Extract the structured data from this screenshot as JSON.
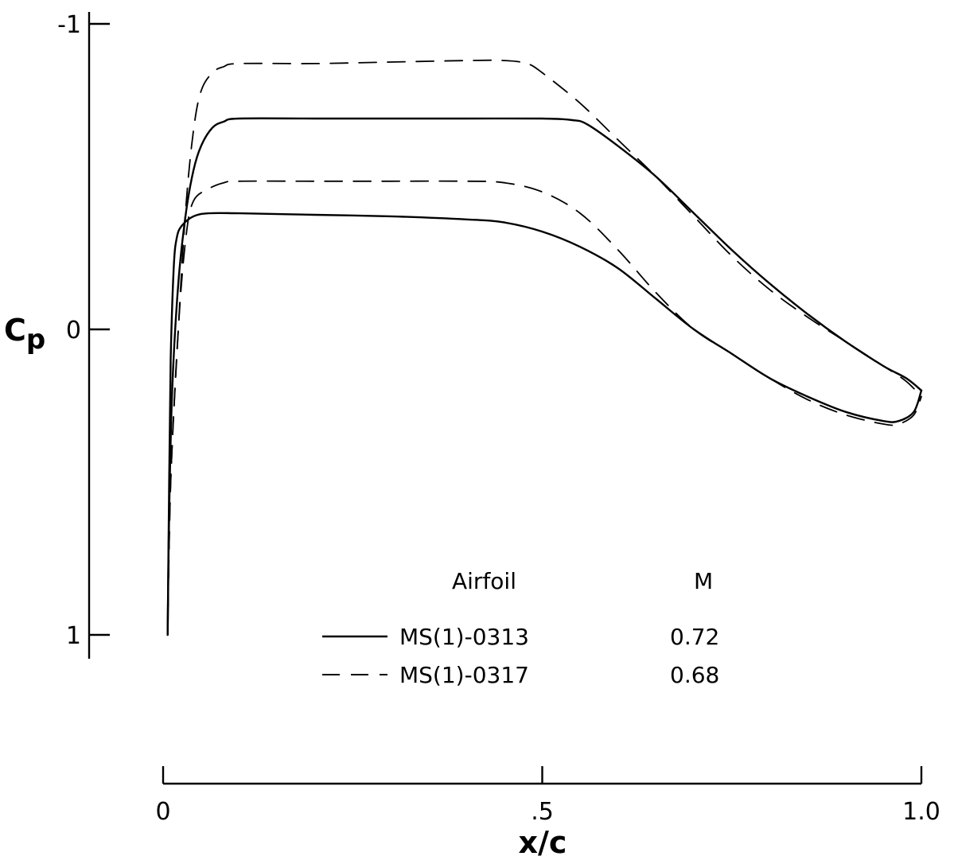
{
  "chart_data": {
    "type": "line",
    "xlabel": "x/c",
    "ylabel": "C",
    "ylabel_subscript": "p",
    "x_axis": {
      "range": [
        0,
        1.0
      ],
      "ticks": [
        0,
        0.5,
        1.0
      ],
      "tick_labels": [
        "0",
        ".5",
        "1.0"
      ]
    },
    "y_axis": {
      "range": [
        1,
        -1
      ],
      "inverted": true,
      "ticks": [
        -1,
        0,
        1
      ],
      "tick_labels": [
        "-1",
        "0",
        "1"
      ]
    },
    "grid": false,
    "legend": {
      "position": "bottom-center",
      "header_airfoil": "Airfoil",
      "header_mach": "M",
      "entries": [
        {
          "airfoil": "MS(1)-0313",
          "mach": "0.72",
          "style": "solid"
        },
        {
          "airfoil": "MS(1)-0317",
          "mach": "0.68",
          "style": "dashed"
        }
      ]
    },
    "series": [
      {
        "airfoil": "MS(1)-0313",
        "surface": "upper",
        "style": "solid",
        "points": [
          [
            0.006,
            1.0
          ],
          [
            0.008,
            0.6
          ],
          [
            0.012,
            0.2
          ],
          [
            0.02,
            -0.15
          ],
          [
            0.03,
            -0.38
          ],
          [
            0.04,
            -0.52
          ],
          [
            0.05,
            -0.6
          ],
          [
            0.065,
            -0.66
          ],
          [
            0.08,
            -0.68
          ],
          [
            0.1,
            -0.69
          ],
          [
            0.2,
            -0.69
          ],
          [
            0.3,
            -0.69
          ],
          [
            0.4,
            -0.69
          ],
          [
            0.5,
            -0.69
          ],
          [
            0.54,
            -0.685
          ],
          [
            0.56,
            -0.67
          ],
          [
            0.6,
            -0.6
          ],
          [
            0.65,
            -0.5
          ],
          [
            0.7,
            -0.38
          ],
          [
            0.75,
            -0.26
          ],
          [
            0.8,
            -0.15
          ],
          [
            0.85,
            -0.05
          ],
          [
            0.9,
            0.04
          ],
          [
            0.95,
            0.12
          ],
          [
            0.98,
            0.16
          ],
          [
            1.0,
            0.2
          ]
        ]
      },
      {
        "airfoil": "MS(1)-0313",
        "surface": "lower",
        "style": "solid",
        "points": [
          [
            0.006,
            1.0
          ],
          [
            0.008,
            0.5
          ],
          [
            0.01,
            0.1
          ],
          [
            0.014,
            -0.2
          ],
          [
            0.018,
            -0.3
          ],
          [
            0.025,
            -0.34
          ],
          [
            0.04,
            -0.37
          ],
          [
            0.06,
            -0.38
          ],
          [
            0.1,
            -0.38
          ],
          [
            0.2,
            -0.375
          ],
          [
            0.3,
            -0.37
          ],
          [
            0.4,
            -0.36
          ],
          [
            0.45,
            -0.35
          ],
          [
            0.5,
            -0.32
          ],
          [
            0.55,
            -0.27
          ],
          [
            0.6,
            -0.2
          ],
          [
            0.65,
            -0.1
          ],
          [
            0.7,
            0.0
          ],
          [
            0.75,
            0.08
          ],
          [
            0.8,
            0.16
          ],
          [
            0.85,
            0.22
          ],
          [
            0.9,
            0.27
          ],
          [
            0.95,
            0.3
          ],
          [
            0.97,
            0.3
          ],
          [
            0.99,
            0.27
          ],
          [
            1.0,
            0.2
          ]
        ]
      },
      {
        "airfoil": "MS(1)-0317",
        "surface": "upper",
        "style": "dashed",
        "points": [
          [
            0.006,
            1.0
          ],
          [
            0.01,
            0.5
          ],
          [
            0.02,
            0.0
          ],
          [
            0.03,
            -0.4
          ],
          [
            0.04,
            -0.65
          ],
          [
            0.05,
            -0.78
          ],
          [
            0.065,
            -0.84
          ],
          [
            0.08,
            -0.86
          ],
          [
            0.1,
            -0.87
          ],
          [
            0.2,
            -0.87
          ],
          [
            0.3,
            -0.875
          ],
          [
            0.4,
            -0.88
          ],
          [
            0.45,
            -0.88
          ],
          [
            0.48,
            -0.87
          ],
          [
            0.5,
            -0.84
          ],
          [
            0.55,
            -0.74
          ],
          [
            0.6,
            -0.62
          ],
          [
            0.65,
            -0.5
          ],
          [
            0.7,
            -0.37
          ],
          [
            0.75,
            -0.24
          ],
          [
            0.8,
            -0.13
          ],
          [
            0.85,
            -0.04
          ],
          [
            0.9,
            0.04
          ],
          [
            0.95,
            0.12
          ],
          [
            0.98,
            0.17
          ],
          [
            1.0,
            0.22
          ]
        ]
      },
      {
        "airfoil": "MS(1)-0317",
        "surface": "lower",
        "style": "dashed",
        "points": [
          [
            0.006,
            1.0
          ],
          [
            0.01,
            0.5
          ],
          [
            0.02,
            0.0
          ],
          [
            0.03,
            -0.3
          ],
          [
            0.04,
            -0.42
          ],
          [
            0.06,
            -0.46
          ],
          [
            0.08,
            -0.48
          ],
          [
            0.1,
            -0.485
          ],
          [
            0.2,
            -0.485
          ],
          [
            0.3,
            -0.485
          ],
          [
            0.4,
            -0.485
          ],
          [
            0.45,
            -0.48
          ],
          [
            0.5,
            -0.45
          ],
          [
            0.55,
            -0.38
          ],
          [
            0.6,
            -0.26
          ],
          [
            0.65,
            -0.12
          ],
          [
            0.7,
            0.0
          ],
          [
            0.75,
            0.08
          ],
          [
            0.8,
            0.16
          ],
          [
            0.85,
            0.23
          ],
          [
            0.9,
            0.28
          ],
          [
            0.95,
            0.31
          ],
          [
            0.97,
            0.31
          ],
          [
            0.99,
            0.28
          ],
          [
            1.0,
            0.22
          ]
        ]
      }
    ]
  }
}
